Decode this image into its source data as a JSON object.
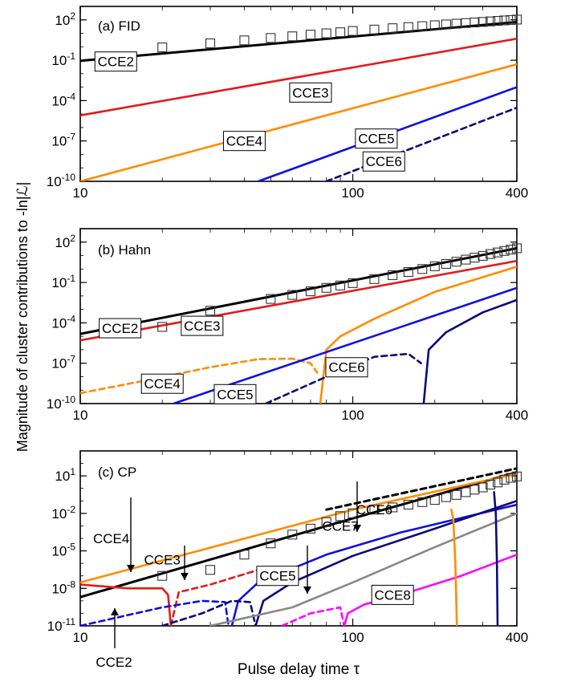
{
  "figure": {
    "ylabel": "Magnitude of cluster contributions to -ln|ℒ|",
    "xlabel": "Pulse delay time τ"
  },
  "colors": {
    "CCE2": "#000000",
    "CCE3": "#e41a1c",
    "CCE4": "#ff8c00",
    "CCE5": "#1010e0",
    "CCE6": "#0a0a78",
    "CCE7": "#0a0a78",
    "CCE8": "#ff00ff",
    "CCE_gray": "#888888",
    "markers": "#333333"
  },
  "chart_data": [
    {
      "type": "line",
      "title": "(a) FID",
      "x_scale": "log",
      "y_scale": "log",
      "xlim": [
        10,
        400
      ],
      "ylim": [
        1e-10,
        1000
      ],
      "xticks": [
        "10",
        "100",
        "400"
      ],
      "yticks": [
        "10^2",
        "10^-1",
        "10^-4",
        "10^-7",
        "10^-10"
      ],
      "markers": {
        "name": "",
        "x": [
          20,
          30,
          40,
          50,
          60,
          70,
          80,
          90,
          100,
          120,
          140,
          160,
          180,
          200,
          220,
          240,
          260,
          280,
          300,
          320,
          340,
          360,
          380,
          400
        ],
        "y": [
          0.9,
          1.8,
          3,
          4.5,
          6,
          8,
          10,
          12,
          15,
          19,
          24,
          29,
          34,
          40,
          46,
          52,
          58,
          64,
          70,
          77,
          84,
          91,
          98,
          105
        ]
      },
      "series": [
        {
          "name": "CCE2",
          "style": "solid",
          "x": [
            10,
            400
          ],
          "y": [
            0.09,
            70
          ]
        },
        {
          "name": "CCE3",
          "style": "solid",
          "x": [
            10,
            400
          ],
          "y": [
            8e-06,
            4
          ]
        },
        {
          "name": "CCE4",
          "style": "solid",
          "x": [
            10,
            400
          ],
          "y": [
            1e-10,
            0.05
          ]
        },
        {
          "name": "CCE5",
          "style": "solid",
          "x": [
            45,
            400
          ],
          "y": [
            1e-10,
            0.001
          ]
        },
        {
          "name": "CCE6",
          "style": "dashed",
          "x": [
            80,
            400
          ],
          "y": [
            1e-10,
            3e-05
          ]
        }
      ],
      "labels": [
        "CCE2",
        "CCE3",
        "CCE4",
        "CCE5",
        "CCE6"
      ]
    },
    {
      "type": "line",
      "title": "(b) Hahn",
      "x_scale": "log",
      "y_scale": "log",
      "xlim": [
        10,
        400
      ],
      "ylim": [
        1e-10,
        1000
      ],
      "xticks": [
        "10",
        "100",
        "400"
      ],
      "yticks": [
        "10^2",
        "10^-1",
        "10^-4",
        "10^-7",
        "10^-10"
      ],
      "markers": {
        "name": "",
        "x": [
          20,
          30,
          50,
          60,
          70,
          80,
          90,
          100,
          120,
          140,
          160,
          180,
          200,
          220,
          240,
          260,
          280,
          300,
          320,
          340,
          360,
          380,
          400
        ],
        "y": [
          5e-05,
          0.0008,
          0.006,
          0.012,
          0.022,
          0.04,
          0.06,
          0.09,
          0.18,
          0.35,
          0.6,
          1,
          1.6,
          2.4,
          3.5,
          5,
          7,
          9.5,
          13,
          17,
          22,
          28,
          35
        ]
      },
      "series": [
        {
          "name": "CCE2",
          "style": "solid",
          "x": [
            10,
            400
          ],
          "y": [
            1.5e-05,
            35
          ]
        },
        {
          "name": "CCE3",
          "style": "solid",
          "x": [
            10,
            400
          ],
          "y": [
            5e-06,
            4
          ]
        },
        {
          "name": "CCE4 (negative)",
          "style": "dashed",
          "x": [
            10,
            18,
            30,
            45,
            60,
            70,
            74
          ],
          "y": [
            6e-10,
            6e-09,
            5e-08,
            2e-07,
            2.2e-07,
            1e-07,
            2e-08
          ]
        },
        {
          "name": "CCE4",
          "style": "solid",
          "x": [
            76,
            80,
            90,
            120,
            200,
            400
          ],
          "y": [
            1e-10,
            1e-06,
            1e-05,
            0.0002,
            0.02,
            1.5
          ]
        },
        {
          "name": "CCE5",
          "style": "solid",
          "x": [
            22,
            400
          ],
          "y": [
            1e-10,
            0.04
          ]
        },
        {
          "name": "CCE6 (negative)",
          "style": "dashed",
          "x": [
            48,
            80,
            120,
            160,
            178
          ],
          "y": [
            1e-10,
            1e-08,
            3e-07,
            5e-07,
            1e-07
          ]
        },
        {
          "name": "CCE6",
          "style": "solid",
          "x": [
            182,
            190,
            220,
            300,
            400
          ],
          "y": [
            1e-10,
            1e-06,
            2e-05,
            0.0006,
            0.005
          ]
        }
      ],
      "labels": [
        "CCE2",
        "CCE3",
        "CCE4",
        "CCE5",
        "CCE6"
      ]
    },
    {
      "type": "line",
      "title": "(c) CP",
      "x_scale": "log",
      "y_scale": "log",
      "xlim": [
        10,
        400
      ],
      "ylim": [
        1e-11,
        1000
      ],
      "xticks": [
        "10",
        "100",
        "400"
      ],
      "yticks": [
        "10^1",
        "10^-2",
        "10^-5",
        "10^-8",
        "10^-11"
      ],
      "markers": {
        "name": "",
        "x": [
          20,
          30,
          40,
          50,
          60,
          70,
          80,
          90,
          100,
          120,
          140,
          160,
          180,
          200,
          220,
          240,
          260,
          280,
          300,
          320,
          340,
          360,
          380,
          400
        ],
        "y": [
          1e-07,
          3e-07,
          5e-06,
          4e-05,
          0.0002,
          0.0006,
          0.002,
          0.006,
          0.01,
          0.02,
          0.03,
          0.05,
          0.08,
          0.12,
          0.2,
          0.3,
          0.5,
          0.8,
          1.2,
          2,
          3,
          5,
          7,
          9
        ]
      },
      "series": [
        {
          "name": "CCE2",
          "style": "solid",
          "x": [
            10,
            100,
            400
          ],
          "y": [
            2e-09,
            0.004,
            20
          ]
        },
        {
          "name": "CCE2 (dashed)",
          "style": "dashed",
          "x": [
            80,
            400
          ],
          "y": [
            0.02,
            40
          ]
        },
        {
          "name": "CCE4",
          "style": "solid",
          "x": [
            10,
            100,
            400
          ],
          "y": [
            3e-08,
            0.02,
            15
          ]
        },
        {
          "name": "CCE3",
          "style": "solid",
          "x": [
            10,
            15,
            18,
            20,
            21,
            21.5
          ],
          "y": [
            2e-08,
            1e-08,
            1e-08,
            1e-08,
            3e-09,
            1e-11
          ]
        },
        {
          "name": "CCE3 (negative)",
          "style": "dashed",
          "x": [
            21.5,
            23,
            30,
            45
          ],
          "y": [
            1e-11,
            5e-09,
            2e-08,
            3e-07
          ]
        },
        {
          "name": "CCE5 (negative)",
          "style": "dashed",
          "x": [
            10,
            20,
            28,
            34,
            35
          ],
          "y": [
            1e-11,
            3e-10,
            1e-09,
            8e-10,
            1e-11
          ]
        },
        {
          "name": "CCE5",
          "style": "solid",
          "x": [
            36,
            38,
            45,
            80,
            150,
            400
          ],
          "y": [
            1e-11,
            1e-09,
            3e-08,
            5e-06,
            0.0003,
            0.05
          ]
        },
        {
          "name": "CCE6 (negative)",
          "style": "dashed",
          "x": [
            20,
            28,
            36,
            42,
            44
          ],
          "y": [
            1e-11,
            1e-10,
            1e-09,
            8e-10,
            1e-11
          ]
        },
        {
          "name": "CCE6",
          "style": "solid",
          "x": [
            44,
            47,
            60,
            100,
            200,
            400
          ],
          "y": [
            1e-11,
            1e-09,
            3e-08,
            4e-06,
            0.0006,
            0.1
          ]
        },
        {
          "name": "CCE7",
          "style": "solid",
          "x": [
            30,
            60,
            100,
            200,
            400
          ],
          "y": [
            1e-11,
            3e-10,
            3e-08,
            2e-05,
            0.01
          ]
        },
        {
          "name": "CCE8 (negative)",
          "style": "dashed",
          "x": [
            55,
            70,
            90,
            93
          ],
          "y": [
            1e-11,
            1e-10,
            3e-10,
            1e-11
          ]
        },
        {
          "name": "CCE8",
          "style": "solid",
          "x": [
            93,
            96,
            110,
            150,
            250,
            400
          ],
          "y": [
            1e-11,
            1e-10,
            5e-10,
            3e-09,
            1e-07,
            5e-06
          ]
        },
        {
          "name": "CCE4 (orange tail)",
          "style": "solid",
          "x": [
            230,
            234,
            238,
            241
          ],
          "y": [
            0.02,
            0.003,
            1e-06,
            1e-11
          ]
        },
        {
          "name": "CCE6 (navy tail)",
          "style": "solid",
          "x": [
            330,
            335,
            338,
            340
          ],
          "y": [
            0.5,
            0.01,
            1e-06,
            1e-11
          ]
        }
      ],
      "labels": [
        "CCE4",
        "CCE3",
        "CCE6",
        "CCE7",
        "CCE5",
        "CCE8",
        "CCE2"
      ]
    }
  ]
}
